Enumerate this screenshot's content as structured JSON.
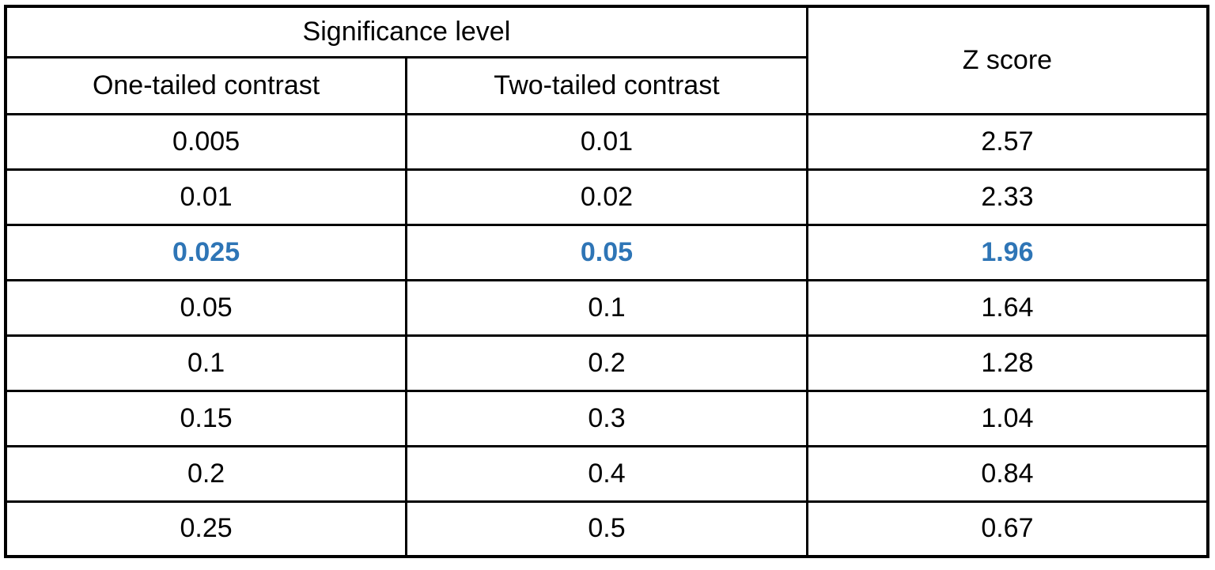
{
  "chart_data": {
    "type": "table",
    "title": "",
    "group_header": "Significance level",
    "columns": [
      "One-tailed contrast",
      "Two-tailed contrast",
      "Z score"
    ],
    "header": {
      "significance": "Significance level",
      "one_tailed": "One-tailed contrast",
      "two_tailed": "Two-tailed contrast",
      "z_score": "Z score"
    },
    "rows": [
      [
        "0.005",
        "0.01",
        "2.57"
      ],
      [
        "0.01",
        "0.02",
        "2.33"
      ],
      [
        "0.025",
        "0.05",
        "1.96"
      ],
      [
        "0.05",
        "0.1",
        "1.64"
      ],
      [
        "0.1",
        "0.2",
        "1.28"
      ],
      [
        "0.15",
        "0.3",
        "1.04"
      ],
      [
        "0.2",
        "0.4",
        "0.84"
      ],
      [
        "0.25",
        "0.5",
        "0.67"
      ]
    ],
    "highlighted_row_index": 2,
    "highlighted_row_values": [
      "0.025",
      "0.05",
      "1.96"
    ]
  },
  "colors": {
    "header_text": "#2E74B5",
    "highlight_text": "#2E75B6",
    "body_text": "#000000",
    "border": "#000000",
    "background": "#FFFFFF"
  }
}
